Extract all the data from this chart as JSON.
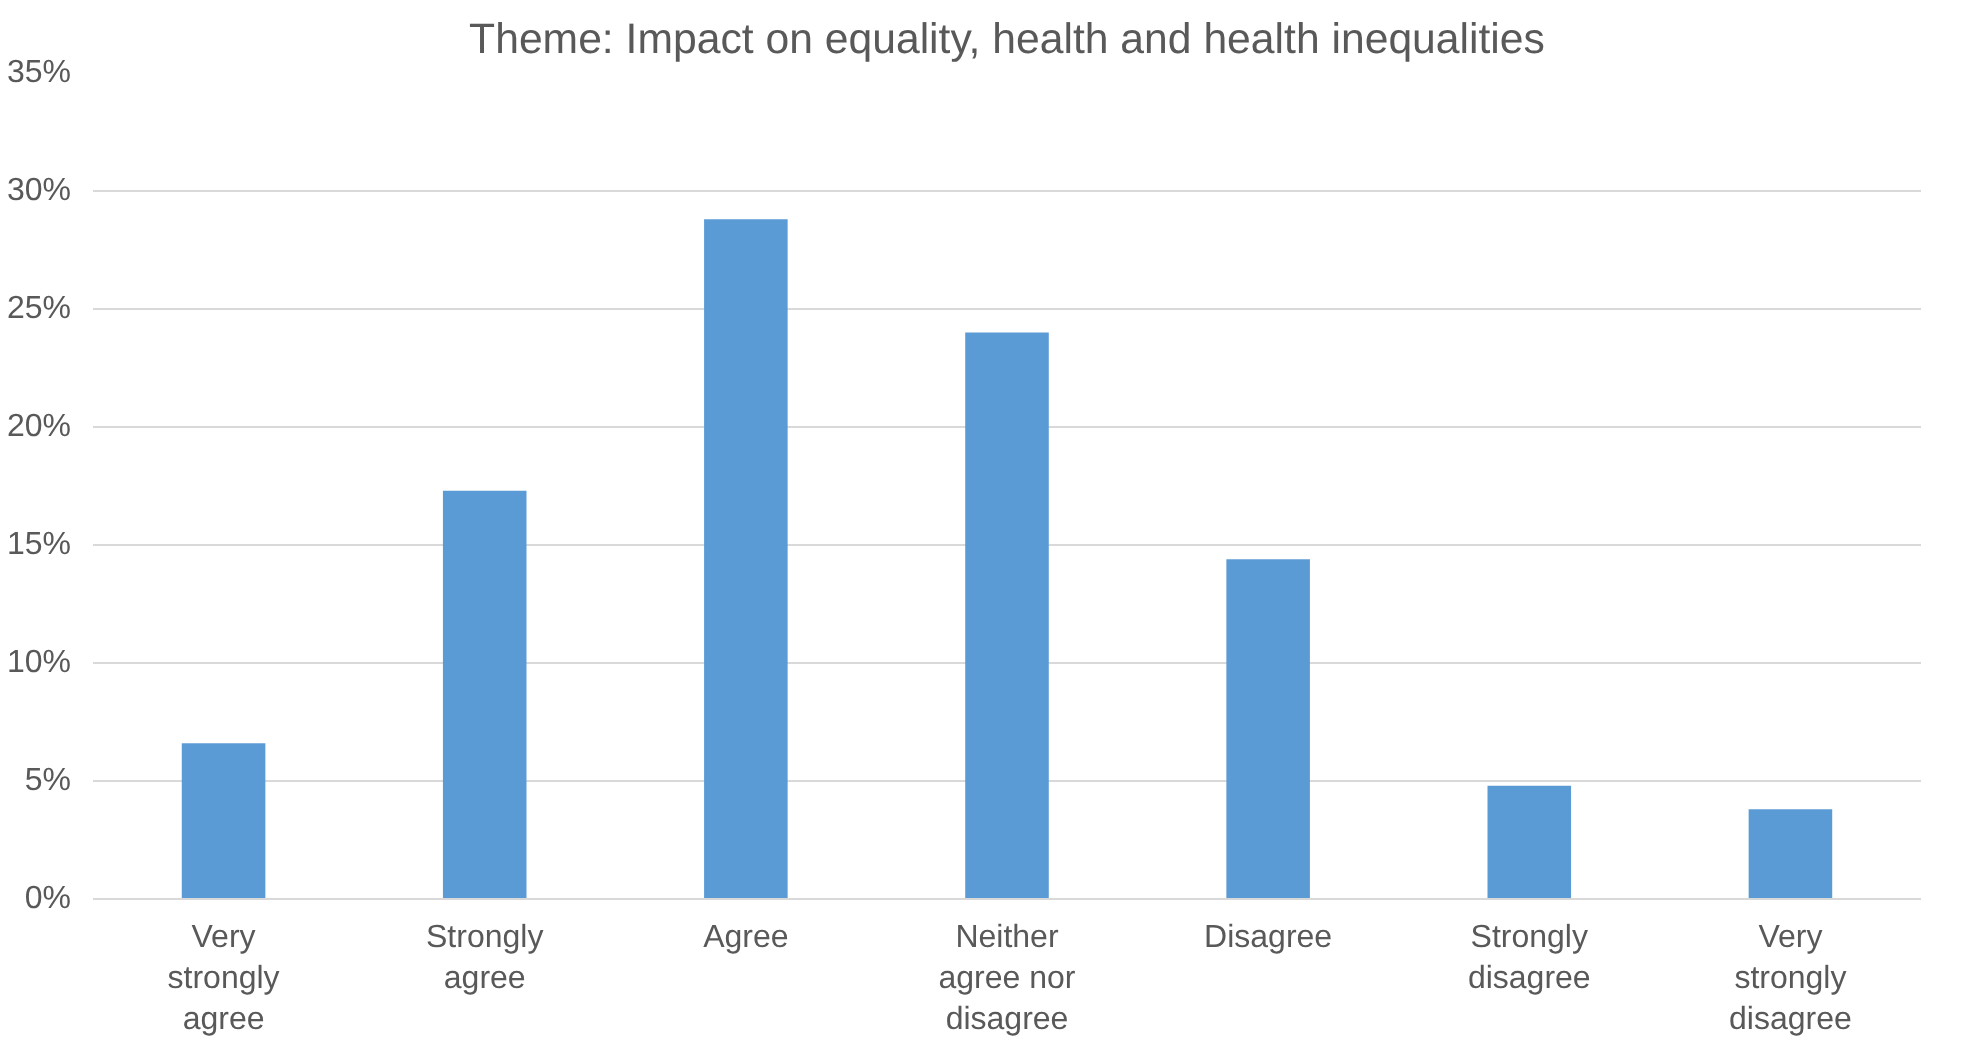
{
  "chart_data": {
    "type": "bar",
    "title": "Theme: Impact on equality, health and health inequalities",
    "categories": [
      "Very strongly agree",
      "Strongly agree",
      "Agree",
      "Neither agree nor disagree",
      "Disagree",
      "Strongly disagree",
      "Very strongly disagree"
    ],
    "values": [
      6.6,
      17.3,
      28.8,
      24.0,
      14.4,
      4.8,
      3.8
    ],
    "color": "#5b9bd5",
    "ylim": [
      0,
      35
    ],
    "yticks": [
      {
        "value": 0,
        "label": "0%"
      },
      {
        "value": 5,
        "label": "5%"
      },
      {
        "value": 10,
        "label": "10%"
      },
      {
        "value": 15,
        "label": "15%"
      },
      {
        "value": 20,
        "label": "20%"
      },
      {
        "value": 25,
        "label": "25%"
      },
      {
        "value": 30,
        "label": "30%"
      },
      {
        "value": 35,
        "label": "35%"
      }
    ],
    "grid": "y"
  }
}
